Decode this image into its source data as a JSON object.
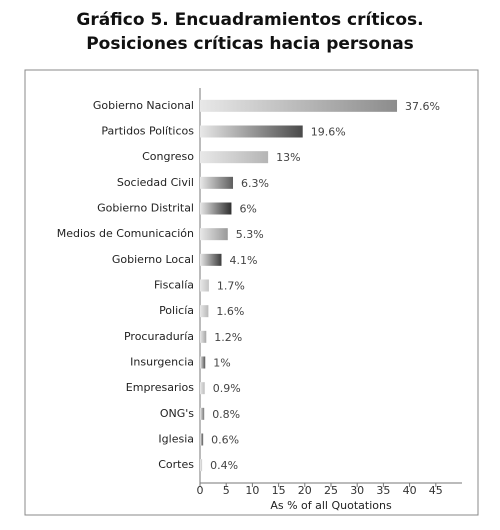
{
  "chart_data": {
    "type": "hbar",
    "title": [
      "Gráfico 5. Encuadramientos críticos.",
      "Posiciones críticas hacia personas"
    ],
    "x_label": "As % of all Quotations",
    "categories": [
      "Gobierno Nacional",
      "Partidos Políticos",
      "Congreso",
      "Sociedad Civil",
      "Gobierno Distrital",
      "Medios de Comunicación",
      "Gobierno Local",
      "Fiscalía",
      "Policía",
      "Procuraduría",
      "Insurgencia",
      "Empresarios",
      "ONG's",
      "Iglesia",
      "Cortes"
    ],
    "values": [
      37.6,
      19.6,
      13,
      6.3,
      6,
      5.3,
      4.1,
      1.7,
      1.6,
      1.2,
      1,
      0.9,
      0.8,
      0.6,
      0.4
    ],
    "value_labels": [
      "37.6%",
      "19.6%",
      "13%",
      "6.3%",
      "6%",
      "5.3%",
      "4.1%",
      "1.7%",
      "1.6%",
      "1.2%",
      "1%",
      "0.9%",
      "0.8%",
      "0.6%",
      "0.4%"
    ],
    "colors": [
      "#8c8c8c",
      "#4a4a4a",
      "#b5b5b5",
      "#5e5e5e",
      "#2e2e2e",
      "#999999",
      "#3c3c3c",
      "#c4c4c4",
      "#b8b8b8",
      "#a6a6a6",
      "#555555",
      "#bdbdbd",
      "#777777",
      "#555555",
      "#cccccc"
    ],
    "xlim": [
      0,
      50
    ],
    "xticks": [
      0,
      5,
      10,
      15,
      20,
      25,
      30,
      35,
      40,
      45
    ]
  }
}
